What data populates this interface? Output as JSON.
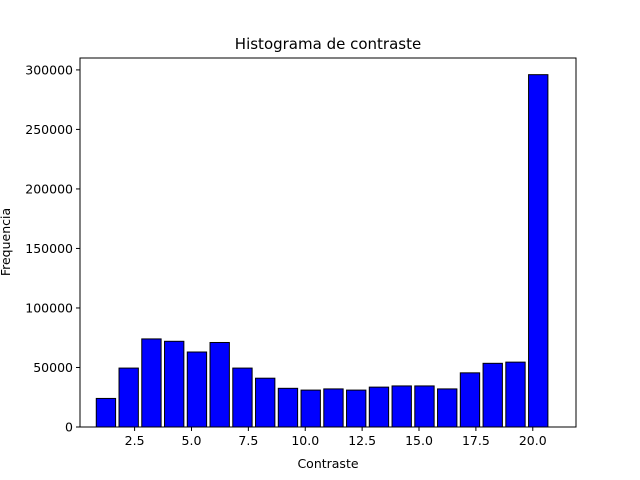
{
  "chart_data": {
    "type": "bar",
    "title": "Histograma de contraste",
    "xlabel": "Contraste",
    "ylabel": "Frequencia",
    "bar_color": "#0000ff",
    "edge_color": "#000000",
    "x": [
      1.24,
      2.24,
      3.24,
      4.24,
      5.24,
      6.24,
      7.24,
      8.24,
      9.24,
      10.24,
      11.24,
      12.24,
      13.24,
      14.24,
      15.24,
      16.24,
      17.24,
      18.24,
      19.24,
      20.24
    ],
    "values": [
      24000,
      49500,
      74000,
      72000,
      63000,
      71000,
      49500,
      41000,
      32500,
      31000,
      32000,
      31000,
      33500,
      34500,
      34500,
      32000,
      45500,
      53500,
      54500,
      296000
    ],
    "bar_width": 0.85,
    "xlim": [
      0.1,
      21.9
    ],
    "ylim": [
      0,
      310000
    ],
    "xticks": [
      2.5,
      5.0,
      7.5,
      10.0,
      12.5,
      15.0,
      17.5,
      20.0
    ],
    "xtick_labels": [
      "2.5",
      "5.0",
      "7.5",
      "10.0",
      "12.5",
      "15.0",
      "17.5",
      "20.0"
    ],
    "yticks": [
      0,
      50000,
      100000,
      150000,
      200000,
      250000,
      300000
    ],
    "ytick_labels": [
      "0",
      "50000",
      "100000",
      "150000",
      "200000",
      "250000",
      "300000"
    ],
    "grid": false
  }
}
